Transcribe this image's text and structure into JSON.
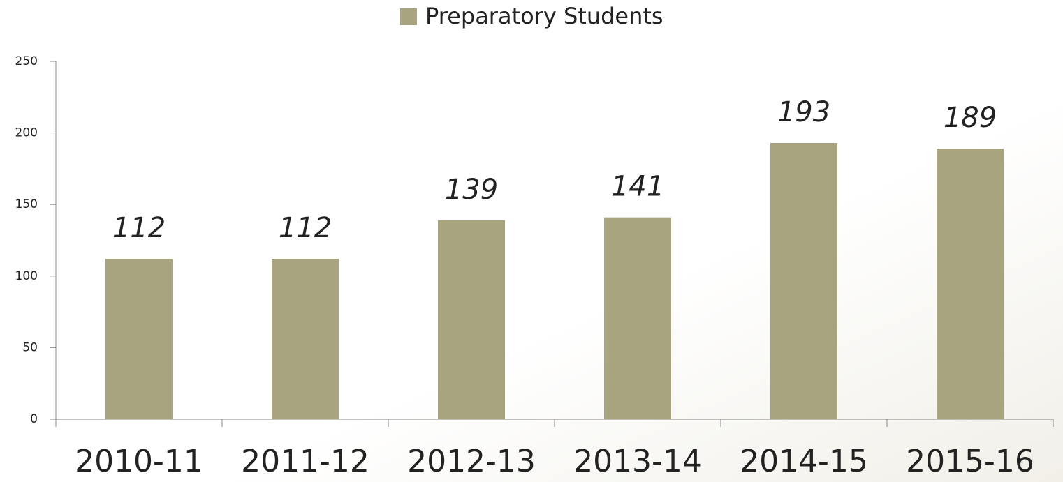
{
  "chart_data": {
    "type": "bar",
    "categories": [
      "2010-11",
      "2011-12",
      "2012-13",
      "2013-14",
      "2014-15",
      "2015-16"
    ],
    "series": [
      {
        "name": "Preparatory Students",
        "color": "#a8a47f",
        "values": [
          112,
          112,
          139,
          141,
          193,
          189
        ]
      }
    ],
    "ylim": [
      0,
      250
    ],
    "yticks": [
      0,
      50,
      100,
      150,
      200,
      250
    ],
    "legend": "top"
  }
}
